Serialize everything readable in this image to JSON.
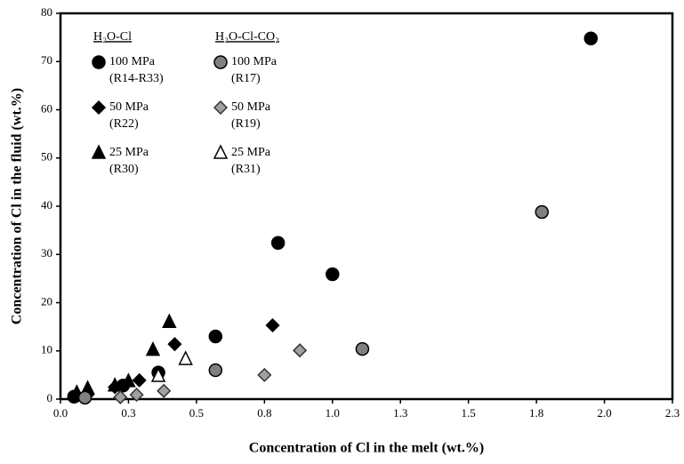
{
  "chart_data": {
    "type": "scatter",
    "x_label": "Concentration of Cl in the melt (wt.%)",
    "y_label": "Concentration of Cl in the fluid (wt.%)",
    "xlim": [
      0,
      2.25
    ],
    "ylim": [
      0,
      80
    ],
    "xticks": [
      {
        "value": 0,
        "label": "0.0"
      },
      {
        "value": 0.25,
        "label": "0.3"
      },
      {
        "value": 0.5,
        "label": "0.5"
      },
      {
        "value": 0.75,
        "label": "0.8"
      },
      {
        "value": 1,
        "label": "1.0"
      },
      {
        "value": 1.25,
        "label": "1.3"
      },
      {
        "value": 1.5,
        "label": "1.5"
      },
      {
        "value": 1.75,
        "label": "1.8"
      },
      {
        "value": 2,
        "label": "2.0"
      },
      {
        "value": 2.25,
        "label": "2.3"
      }
    ],
    "yticks": [
      0,
      10,
      20,
      30,
      40,
      50,
      60,
      70,
      80
    ],
    "groups": [
      {
        "title": "H₂O-Cl",
        "series": [
          {
            "name": "100 MPa",
            "runs": "(R14-R33)",
            "marker": "circle",
            "color": "#000000",
            "edge": "#000000",
            "x": [
              0.05,
              0.23,
              0.36,
              0.57,
              0.8,
              1.0,
              1.95
            ],
            "y": [
              0.5,
              2.8,
              5.5,
              13,
              32.4,
              25.9,
              74.8
            ]
          },
          {
            "name": "50 MPa",
            "runs": "(R22)",
            "marker": "diamond",
            "color": "#000000",
            "edge": "#000000",
            "x": [
              0.1,
              0.2,
              0.29,
              0.42,
              0.78
            ],
            "y": [
              1,
              2.5,
              3.9,
              11.4,
              15.3
            ]
          },
          {
            "name": "25 MPa",
            "runs": "(R30)",
            "marker": "triangle",
            "color": "#000000",
            "edge": "#000000",
            "x": [
              0.06,
              0.1,
              0.2,
              0.25,
              0.34,
              0.4
            ],
            "y": [
              1.3,
              2.2,
              2.8,
              3.7,
              10.2,
              16
            ]
          }
        ]
      },
      {
        "title": "H₂O-Cl-CO₂",
        "series": [
          {
            "name": "100 MPa",
            "runs": "(R17)",
            "marker": "circle",
            "color": "#808080",
            "edge": "#000000",
            "x": [
              0.09,
              0.57,
              1.11,
              1.77
            ],
            "y": [
              0.3,
              6,
              10.4,
              38.8
            ]
          },
          {
            "name": "50 MPa",
            "runs": "(R19)",
            "marker": "diamond",
            "color": "#a0a0a0",
            "edge": "#333333",
            "x": [
              0.22,
              0.28,
              0.38,
              0.75,
              0.88
            ],
            "y": [
              0.4,
              0.9,
              1.7,
              5,
              10.1
            ]
          },
          {
            "name": "25 MPa",
            "runs": "(R31)",
            "marker": "triangle",
            "color": "#ffffff",
            "edge": "#000000",
            "x": [
              0.36,
              0.46
            ],
            "y": [
              4.8,
              8.3
            ]
          }
        ]
      }
    ]
  }
}
